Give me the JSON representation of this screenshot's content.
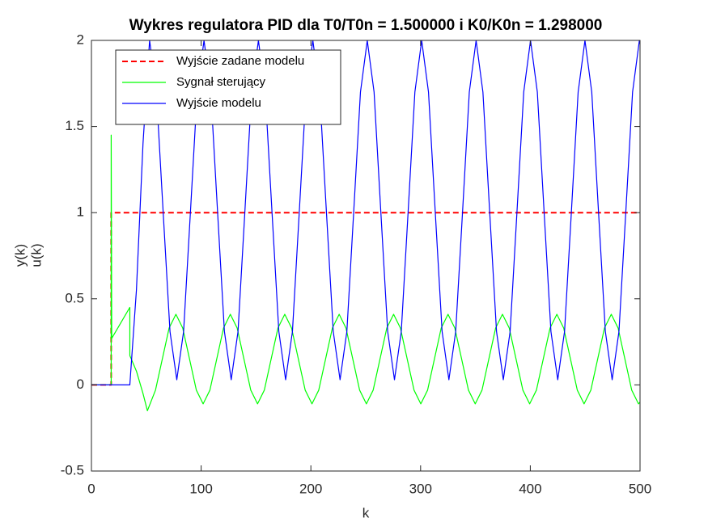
{
  "chart_data": {
    "type": "line",
    "title": "Wykres regulatora PID dla T0/T0n = 1.500000 i K0/K0n = 1.298000",
    "x_label": "k",
    "y_label": [
      "y(k)",
      "u(k)"
    ],
    "xlim": [
      0,
      500
    ],
    "xticks": [
      0,
      100,
      200,
      300,
      400,
      500
    ],
    "ylim": [
      -0.5,
      2
    ],
    "yticks": [
      -0.5,
      0,
      0.5,
      1,
      1.5,
      2
    ],
    "grid": false,
    "legend": "northwest",
    "series": [
      {
        "name": "Wyjście zadane modelu",
        "color": "#ff0000",
        "line_style": "dashed",
        "x": [
          0,
          18,
          18,
          500
        ],
        "values": [
          0,
          0,
          1,
          1
        ]
      },
      {
        "name": "Sygnał sterujący",
        "color": "#00ff00",
        "line_style": "solid",
        "x": [
          0,
          18,
          18,
          18.5,
          35,
          35,
          41,
          47,
          51,
          58.4,
          64.6,
          70.8,
          77,
          83.2,
          89.4,
          95.6,
          101.8,
          108,
          114.2,
          120.4,
          126.6,
          132.8,
          139,
          145.2,
          151.4,
          157.6,
          163.8,
          170,
          176.2,
          182.4,
          188.6,
          194.8,
          201,
          207.2,
          213.4,
          219.6,
          225.8,
          232,
          238.2,
          244.4,
          250.6,
          256.8,
          263,
          269.2,
          275.4,
          281.6,
          287.8,
          294,
          300.2,
          306.4,
          312.6,
          318.8,
          325,
          331.2,
          337.4,
          343.6,
          349.8,
          356,
          362.2,
          368.4,
          374.6,
          380.8,
          387,
          393.2,
          399.4,
          405.6,
          411.8,
          418,
          424.2,
          430.4,
          436.6,
          442.8,
          449,
          455.2,
          461.4,
          467.6,
          473.8,
          480,
          486.2,
          492.4,
          498.6,
          500
        ],
        "values": [
          0,
          0,
          1.45,
          0.27,
          0.45,
          0.17,
          0.08,
          -0.05,
          -0.15,
          -0.03,
          0.15,
          0.33,
          0.41,
          0.33,
          0.15,
          -0.03,
          -0.11,
          -0.03,
          0.15,
          0.33,
          0.41,
          0.33,
          0.15,
          -0.03,
          -0.11,
          -0.03,
          0.15,
          0.33,
          0.41,
          0.33,
          0.15,
          -0.03,
          -0.11,
          -0.03,
          0.15,
          0.33,
          0.41,
          0.33,
          0.15,
          -0.03,
          -0.11,
          -0.03,
          0.15,
          0.33,
          0.41,
          0.33,
          0.15,
          -0.03,
          -0.11,
          -0.03,
          0.15,
          0.33,
          0.41,
          0.33,
          0.15,
          -0.03,
          -0.11,
          -0.03,
          0.15,
          0.33,
          0.41,
          0.33,
          0.15,
          -0.03,
          -0.11,
          -0.03,
          0.15,
          0.33,
          0.41,
          0.33,
          0.15,
          -0.03,
          -0.11,
          -0.03,
          0.15,
          0.33,
          0.41,
          0.33,
          0.15,
          -0.03,
          -0.11,
          -0.1
        ]
      },
      {
        "name": "Wyjście modelu",
        "color": "#0000ff",
        "line_style": "solid",
        "x": [
          0,
          35,
          41,
          47,
          53,
          59.2,
          65.4,
          71.6,
          77.8,
          84,
          90.2,
          96.4,
          102.6,
          108.8,
          115,
          121.2,
          127.4,
          133.6,
          139.8,
          146,
          152.2,
          158.4,
          164.6,
          170.8,
          177,
          183.2,
          189.4,
          195.6,
          201.8,
          208,
          214.2,
          220.4,
          226.6,
          232.8,
          239,
          245.2,
          251.4,
          257.6,
          263.8,
          270,
          276.2,
          282.4,
          288.6,
          294.8,
          301,
          307.2,
          313.4,
          319.6,
          325.8,
          332,
          338.2,
          344.4,
          350.6,
          356.8,
          363,
          369.2,
          375.4,
          381.6,
          387.8,
          394,
          400.2,
          406.4,
          412.6,
          418.8,
          425,
          431.2,
          437.4,
          443.6,
          449.8,
          456,
          462.2,
          468.4,
          474.6,
          480.8,
          487,
          493.2,
          499.4,
          500
        ],
        "values": [
          0,
          0,
          0.55,
          1.4,
          2.0,
          1.7,
          1.0,
          0.31,
          0.03,
          0.31,
          1.0,
          1.7,
          2.0,
          1.7,
          1.0,
          0.31,
          0.03,
          0.31,
          1.0,
          1.7,
          2.0,
          1.7,
          1.0,
          0.31,
          0.03,
          0.31,
          1.0,
          1.7,
          2.0,
          1.7,
          1.0,
          0.31,
          0.03,
          0.31,
          1.0,
          1.7,
          2.0,
          1.7,
          1.0,
          0.31,
          0.03,
          0.31,
          1.0,
          1.7,
          2.0,
          1.7,
          1.0,
          0.31,
          0.03,
          0.31,
          1.0,
          1.7,
          2.0,
          1.7,
          1.0,
          0.31,
          0.03,
          0.31,
          1.0,
          1.7,
          2.0,
          1.7,
          1.0,
          0.31,
          0.03,
          0.31,
          1.0,
          1.7,
          2.0,
          1.7,
          1.0,
          0.31,
          0.03,
          0.31,
          1.0,
          1.7,
          2.0,
          1.98
        ]
      }
    ]
  }
}
